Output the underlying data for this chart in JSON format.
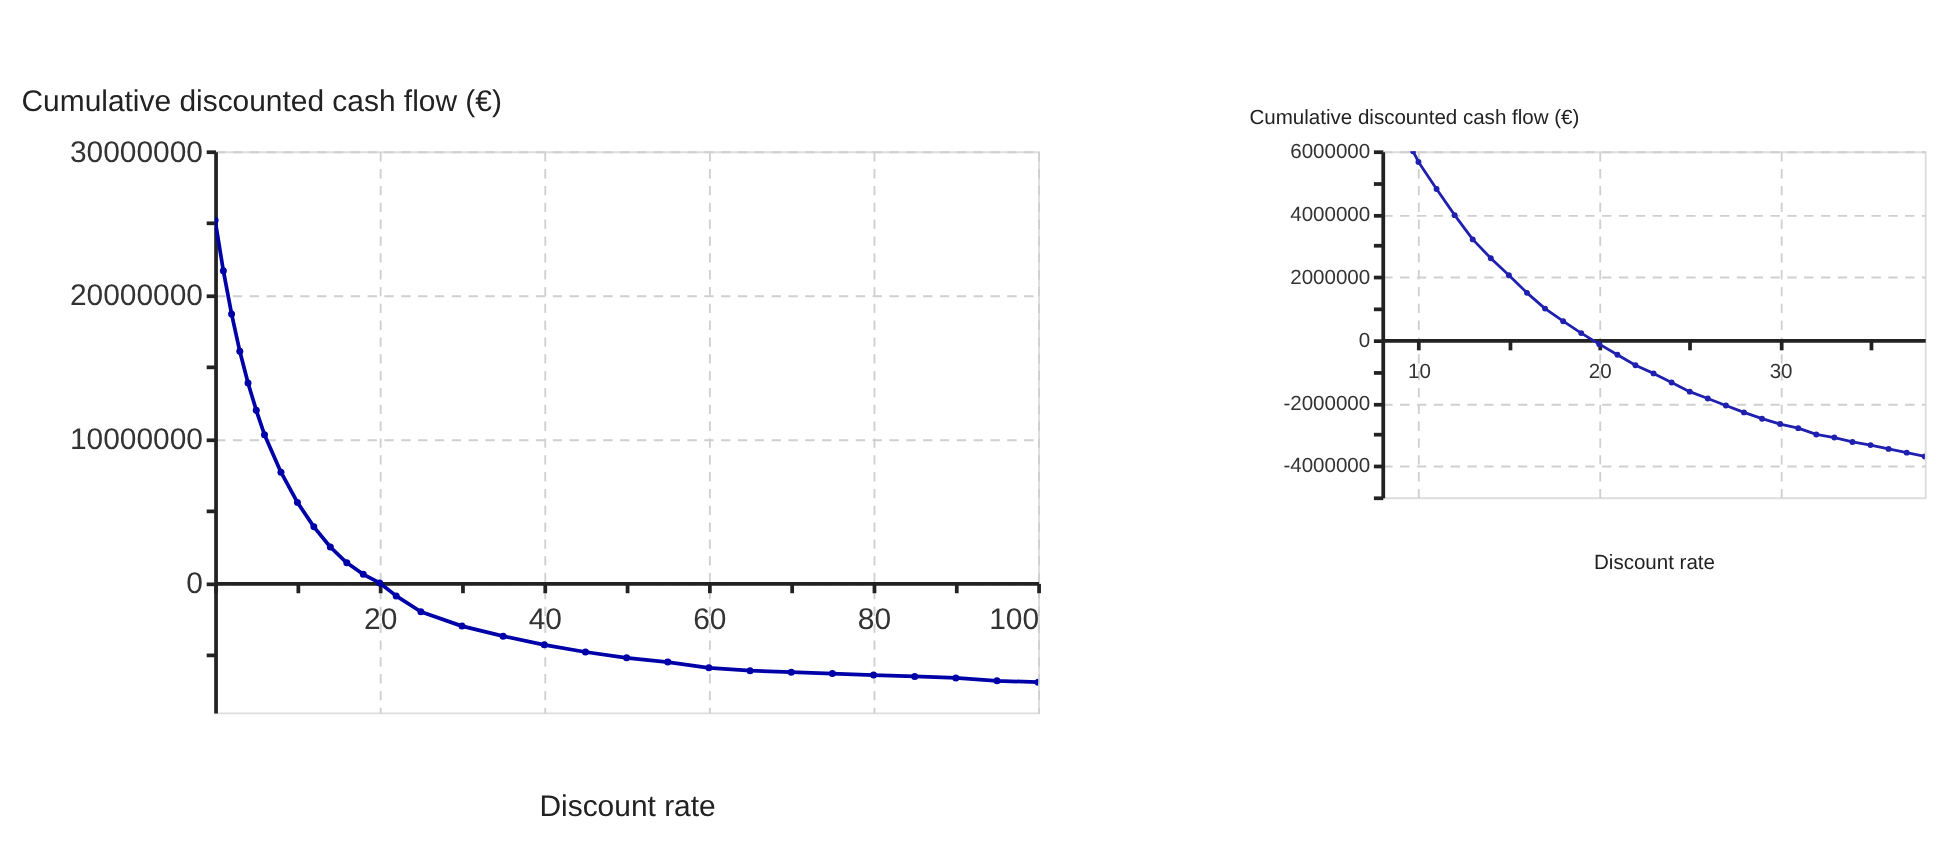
{
  "chart_data": [
    {
      "type": "line",
      "xlabel": "Discount rate",
      "ylabel": "Cumulative discounted cash flow (€)",
      "color": "#0000a8",
      "marker": "circle",
      "grid": true,
      "x": [
        0,
        1,
        2,
        3,
        4,
        5,
        6,
        8,
        10,
        12,
        14,
        16,
        18,
        20,
        22,
        25,
        30,
        35,
        40,
        45,
        50,
        55,
        60,
        65,
        70,
        75,
        80,
        85,
        90,
        95,
        100
      ],
      "values": [
        25200000,
        21700000,
        18700000,
        16100000,
        13900000,
        12000000,
        10300000,
        7700000,
        5600000,
        3900000,
        2500000,
        1400000,
        600000,
        0,
        -900000,
        -2000000,
        -3000000,
        -3700000,
        -4300000,
        -4800000,
        -5200000,
        -5500000,
        -5900000,
        -6100000,
        -6200000,
        -6300000,
        -6400000,
        -6500000,
        -6600000,
        -6800000,
        -6900000
      ],
      "xlim": [
        0,
        100
      ],
      "ylim": [
        -9000000,
        30000000
      ],
      "xticks": [
        {
          "value": 0,
          "label": null
        },
        {
          "value": 10,
          "label": null
        },
        20,
        {
          "value": 30,
          "label": null
        },
        40,
        {
          "value": 50,
          "label": null
        },
        60,
        {
          "value": 70,
          "label": null
        },
        80,
        {
          "value": 90,
          "label": null
        },
        100
      ],
      "yticks": [
        {
          "value": -5000000,
          "label": null
        },
        0,
        {
          "value": 5000000,
          "label": null
        },
        10000000,
        {
          "value": 15000000,
          "label": null
        },
        20000000,
        {
          "value": 25000000,
          "label": null
        },
        30000000
      ]
    },
    {
      "type": "line",
      "xlabel": "Discount rate",
      "ylabel": "Cumulative discounted cash flow (€)",
      "color": "#2020b0",
      "marker": "circle",
      "grid": true,
      "x": [
        9.7,
        10,
        11,
        12,
        13,
        14,
        15,
        16,
        17,
        18,
        19,
        20,
        21,
        22,
        23,
        24,
        25,
        26,
        27,
        28,
        29,
        30,
        31,
        32,
        33,
        34,
        35,
        36,
        37,
        38
      ],
      "values": [
        6000000,
        5660000,
        4800000,
        3970000,
        3200000,
        2600000,
        2060000,
        1500000,
        1000000,
        600000,
        220000,
        -130000,
        -470000,
        -800000,
        -1060000,
        -1350000,
        -1640000,
        -1860000,
        -2080000,
        -2300000,
        -2500000,
        -2670000,
        -2800000,
        -3000000,
        -3100000,
        -3240000,
        -3340000,
        -3460000,
        -3580000,
        -3700000
      ],
      "xlim": [
        8,
        38
      ],
      "ylim": [
        -5000000,
        6000000
      ],
      "xticks": [
        10,
        {
          "value": 15,
          "label": null
        },
        20,
        {
          "value": 25,
          "label": null
        },
        30,
        {
          "value": 35,
          "label": null
        }
      ],
      "yticks": [
        {
          "value": -5000000,
          "label": null
        },
        -4000000,
        {
          "value": -3000000,
          "label": null
        },
        -2000000,
        {
          "value": -1000000,
          "label": null
        },
        0,
        {
          "value": 1000000,
          "label": null
        },
        2000000,
        {
          "value": 3000000,
          "label": null
        },
        4000000,
        {
          "value": 5000000,
          "label": null
        },
        6000000
      ]
    }
  ]
}
